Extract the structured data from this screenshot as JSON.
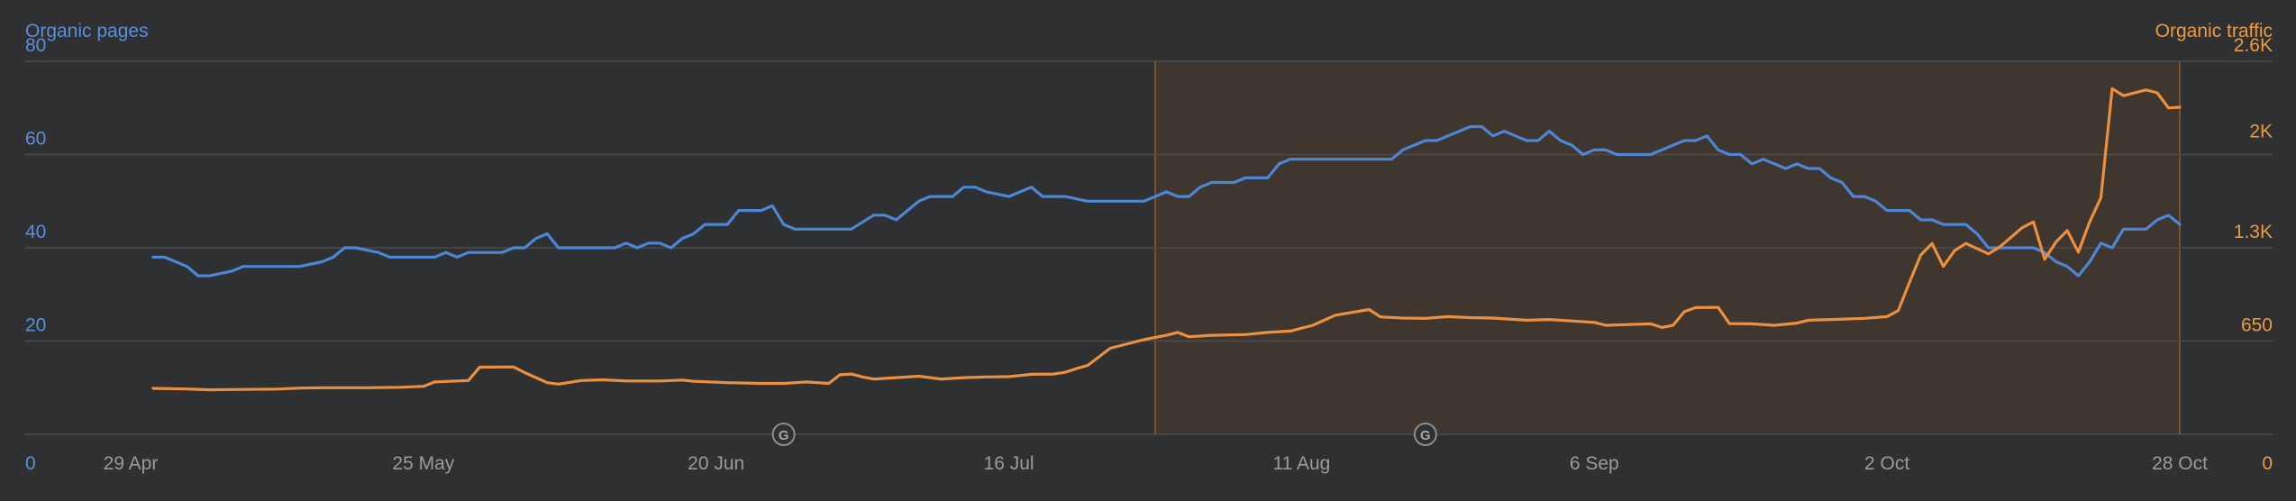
{
  "chart_data": {
    "type": "line",
    "title": "",
    "legend": "none",
    "grid": true,
    "y_left": {
      "label": "Organic pages",
      "range": [
        0,
        80
      ],
      "ticks": [
        0,
        20,
        40,
        60,
        80
      ],
      "tick_labels": [
        "0",
        "20",
        "40",
        "60",
        "80"
      ]
    },
    "y_right": {
      "label": "Organic traffic",
      "range": [
        0,
        2600
      ],
      "ticks": [
        0,
        650,
        1300,
        2000,
        2600
      ],
      "tick_labels": [
        "0",
        "650",
        "1.3K",
        "2K",
        "2.6K"
      ]
    },
    "x_axis": {
      "start": "2024-04-29",
      "end": "2024-10-28",
      "ticks": [
        "2024-04-29",
        "2024-05-25",
        "2024-06-20",
        "2024-07-16",
        "2024-08-11",
        "2024-09-06",
        "2024-10-02",
        "2024-10-28"
      ],
      "tick_labels": [
        "29 Apr",
        "25 May",
        "20 Jun",
        "16 Jul",
        "11 Aug",
        "6 Sep",
        "2 Oct",
        "28 Oct"
      ]
    },
    "highlight_range": [
      "2024-07-29",
      "2024-10-28"
    ],
    "annotations": [
      {
        "date": "2024-06-26",
        "icon": "google-update-icon",
        "label": "G"
      },
      {
        "date": "2024-08-22",
        "icon": "google-update-icon",
        "label": "G"
      }
    ],
    "colors": {
      "pages": "#4c86d4",
      "traffic": "#ea9040",
      "highlight_fill": "#3f3630",
      "highlight_line": "#8f5c2e",
      "grid": "#4a4b4d",
      "background": "#2f3032"
    },
    "series": [
      {
        "name": "Organic pages",
        "axis": "left",
        "points": [
          [
            "2024-05-01",
            38
          ],
          [
            "2024-05-02",
            38
          ],
          [
            "2024-05-04",
            36
          ],
          [
            "2024-05-05",
            34
          ],
          [
            "2024-05-06",
            34
          ],
          [
            "2024-05-08",
            35
          ],
          [
            "2024-05-09",
            36
          ],
          [
            "2024-05-11",
            36
          ],
          [
            "2024-05-14",
            36
          ],
          [
            "2024-05-16",
            37
          ],
          [
            "2024-05-17",
            38
          ],
          [
            "2024-05-18",
            40
          ],
          [
            "2024-05-19",
            40
          ],
          [
            "2024-05-21",
            39
          ],
          [
            "2024-05-22",
            38
          ],
          [
            "2024-05-23",
            38
          ],
          [
            "2024-05-26",
            38
          ],
          [
            "2024-05-27",
            39
          ],
          [
            "2024-05-28",
            38
          ],
          [
            "2024-05-29",
            39
          ],
          [
            "2024-06-01",
            39
          ],
          [
            "2024-06-02",
            40
          ],
          [
            "2024-06-03",
            40
          ],
          [
            "2024-06-04",
            42
          ],
          [
            "2024-06-05",
            43
          ],
          [
            "2024-06-06",
            40
          ],
          [
            "2024-06-08",
            40
          ],
          [
            "2024-06-10",
            40
          ],
          [
            "2024-06-11",
            40
          ],
          [
            "2024-06-12",
            41
          ],
          [
            "2024-06-13",
            40
          ],
          [
            "2024-06-14",
            41
          ],
          [
            "2024-06-15",
            41
          ],
          [
            "2024-06-16",
            40
          ],
          [
            "2024-06-17",
            42
          ],
          [
            "2024-06-18",
            43
          ],
          [
            "2024-06-19",
            45
          ],
          [
            "2024-06-21",
            45
          ],
          [
            "2024-06-22",
            48
          ],
          [
            "2024-06-24",
            48
          ],
          [
            "2024-06-25",
            49
          ],
          [
            "2024-06-26",
            45
          ],
          [
            "2024-06-27",
            44
          ],
          [
            "2024-06-30",
            44
          ],
          [
            "2024-07-02",
            44
          ],
          [
            "2024-07-04",
            47
          ],
          [
            "2024-07-05",
            47
          ],
          [
            "2024-07-06",
            46
          ],
          [
            "2024-07-07",
            48
          ],
          [
            "2024-07-08",
            50
          ],
          [
            "2024-07-09",
            51
          ],
          [
            "2024-07-10",
            51
          ],
          [
            "2024-07-11",
            51
          ],
          [
            "2024-07-12",
            53
          ],
          [
            "2024-07-13",
            53
          ],
          [
            "2024-07-14",
            52
          ],
          [
            "2024-07-16",
            51
          ],
          [
            "2024-07-17",
            52
          ],
          [
            "2024-07-18",
            53
          ],
          [
            "2024-07-19",
            51
          ],
          [
            "2024-07-21",
            51
          ],
          [
            "2024-07-23",
            50
          ],
          [
            "2024-07-25",
            50
          ],
          [
            "2024-07-28",
            50
          ],
          [
            "2024-07-29",
            51
          ],
          [
            "2024-07-30",
            52
          ],
          [
            "2024-07-31",
            51
          ],
          [
            "2024-08-01",
            51
          ],
          [
            "2024-08-02",
            53
          ],
          [
            "2024-08-03",
            54
          ],
          [
            "2024-08-05",
            54
          ],
          [
            "2024-08-06",
            55
          ],
          [
            "2024-08-08",
            55
          ],
          [
            "2024-08-09",
            58
          ],
          [
            "2024-08-10",
            59
          ],
          [
            "2024-08-11",
            59
          ],
          [
            "2024-08-17",
            59
          ],
          [
            "2024-08-19",
            59
          ],
          [
            "2024-08-20",
            61
          ],
          [
            "2024-08-21",
            62
          ],
          [
            "2024-08-22",
            63
          ],
          [
            "2024-08-23",
            63
          ],
          [
            "2024-08-24",
            64
          ],
          [
            "2024-08-25",
            65
          ],
          [
            "2024-08-26",
            66
          ],
          [
            "2024-08-27",
            66
          ],
          [
            "2024-08-28",
            64
          ],
          [
            "2024-08-29",
            65
          ],
          [
            "2024-08-30",
            64
          ],
          [
            "2024-08-31",
            63
          ],
          [
            "2024-09-01",
            63
          ],
          [
            "2024-09-02",
            65
          ],
          [
            "2024-09-03",
            63
          ],
          [
            "2024-09-04",
            62
          ],
          [
            "2024-09-05",
            60
          ],
          [
            "2024-09-06",
            61
          ],
          [
            "2024-09-07",
            61
          ],
          [
            "2024-09-08",
            60
          ],
          [
            "2024-09-11",
            60
          ],
          [
            "2024-09-12",
            61
          ],
          [
            "2024-09-13",
            62
          ],
          [
            "2024-09-14",
            63
          ],
          [
            "2024-09-15",
            63
          ],
          [
            "2024-09-16",
            64
          ],
          [
            "2024-09-17",
            61
          ],
          [
            "2024-09-18",
            60
          ],
          [
            "2024-09-19",
            60
          ],
          [
            "2024-09-20",
            58
          ],
          [
            "2024-09-21",
            59
          ],
          [
            "2024-09-22",
            58
          ],
          [
            "2024-09-23",
            57
          ],
          [
            "2024-09-24",
            58
          ],
          [
            "2024-09-25",
            57
          ],
          [
            "2024-09-26",
            57
          ],
          [
            "2024-09-27",
            55
          ],
          [
            "2024-09-28",
            54
          ],
          [
            "2024-09-29",
            51
          ],
          [
            "2024-09-30",
            51
          ],
          [
            "2024-10-01",
            50
          ],
          [
            "2024-10-02",
            48
          ],
          [
            "2024-10-04",
            48
          ],
          [
            "2024-10-05",
            46
          ],
          [
            "2024-10-06",
            46
          ],
          [
            "2024-10-07",
            45
          ],
          [
            "2024-10-09",
            45
          ],
          [
            "2024-10-10",
            43
          ],
          [
            "2024-10-11",
            40
          ],
          [
            "2024-10-15",
            40
          ],
          [
            "2024-10-16",
            39
          ],
          [
            "2024-10-17",
            37
          ],
          [
            "2024-10-18",
            36
          ],
          [
            "2024-10-19",
            34
          ],
          [
            "2024-10-20",
            37
          ],
          [
            "2024-10-21",
            41
          ],
          [
            "2024-10-22",
            40
          ],
          [
            "2024-10-23",
            44
          ],
          [
            "2024-10-25",
            44
          ],
          [
            "2024-10-26",
            46
          ],
          [
            "2024-10-27",
            47
          ],
          [
            "2024-10-28",
            45
          ]
        ]
      },
      {
        "name": "Organic traffic",
        "axis": "right",
        "points": [
          [
            "2024-05-01",
            320
          ],
          [
            "2024-05-04",
            316
          ],
          [
            "2024-05-06",
            310
          ],
          [
            "2024-05-08",
            312
          ],
          [
            "2024-05-12",
            315
          ],
          [
            "2024-05-14",
            322
          ],
          [
            "2024-05-16",
            325
          ],
          [
            "2024-05-20",
            325
          ],
          [
            "2024-05-23",
            328
          ],
          [
            "2024-05-25",
            335
          ],
          [
            "2024-05-26",
            365
          ],
          [
            "2024-05-28",
            372
          ],
          [
            "2024-05-29",
            375
          ],
          [
            "2024-05-30",
            468
          ],
          [
            "2024-06-02",
            470
          ],
          [
            "2024-06-03",
            430
          ],
          [
            "2024-06-05",
            360
          ],
          [
            "2024-06-06",
            350
          ],
          [
            "2024-06-08",
            375
          ],
          [
            "2024-06-10",
            380
          ],
          [
            "2024-06-12",
            372
          ],
          [
            "2024-06-15",
            372
          ],
          [
            "2024-06-17",
            378
          ],
          [
            "2024-06-18",
            370
          ],
          [
            "2024-06-21",
            360
          ],
          [
            "2024-06-24",
            355
          ],
          [
            "2024-06-26",
            355
          ],
          [
            "2024-06-28",
            365
          ],
          [
            "2024-06-30",
            355
          ],
          [
            "2024-07-01",
            415
          ],
          [
            "2024-07-02",
            420
          ],
          [
            "2024-07-03",
            400
          ],
          [
            "2024-07-04",
            385
          ],
          [
            "2024-07-06",
            395
          ],
          [
            "2024-07-08",
            405
          ],
          [
            "2024-07-10",
            385
          ],
          [
            "2024-07-12",
            395
          ],
          [
            "2024-07-14",
            400
          ],
          [
            "2024-07-16",
            402
          ],
          [
            "2024-07-18",
            418
          ],
          [
            "2024-07-20",
            420
          ],
          [
            "2024-07-21",
            432
          ],
          [
            "2024-07-22",
            458
          ],
          [
            "2024-07-23",
            480
          ],
          [
            "2024-07-25",
            600
          ],
          [
            "2024-07-28",
            660
          ],
          [
            "2024-07-30",
            690
          ],
          [
            "2024-07-31",
            710
          ],
          [
            "2024-08-01",
            680
          ],
          [
            "2024-08-03",
            690
          ],
          [
            "2024-08-06",
            695
          ],
          [
            "2024-08-08",
            710
          ],
          [
            "2024-08-10",
            720
          ],
          [
            "2024-08-12",
            760
          ],
          [
            "2024-08-14",
            830
          ],
          [
            "2024-08-17",
            870
          ],
          [
            "2024-08-18",
            818
          ],
          [
            "2024-08-20",
            810
          ],
          [
            "2024-08-22",
            808
          ],
          [
            "2024-08-24",
            820
          ],
          [
            "2024-08-26",
            813
          ],
          [
            "2024-08-28",
            810
          ],
          [
            "2024-08-31",
            795
          ],
          [
            "2024-09-02",
            800
          ],
          [
            "2024-09-04",
            790
          ],
          [
            "2024-09-06",
            780
          ],
          [
            "2024-09-07",
            760
          ],
          [
            "2024-09-09",
            765
          ],
          [
            "2024-09-11",
            770
          ],
          [
            "2024-09-12",
            745
          ],
          [
            "2024-09-13",
            760
          ],
          [
            "2024-09-14",
            855
          ],
          [
            "2024-09-15",
            883
          ],
          [
            "2024-09-17",
            885
          ],
          [
            "2024-09-18",
            772
          ],
          [
            "2024-09-20",
            770
          ],
          [
            "2024-09-22",
            760
          ],
          [
            "2024-09-24",
            775
          ],
          [
            "2024-09-25",
            795
          ],
          [
            "2024-09-27",
            800
          ],
          [
            "2024-09-30",
            808
          ],
          [
            "2024-10-02",
            820
          ],
          [
            "2024-10-03",
            862
          ],
          [
            "2024-10-04",
            1060
          ],
          [
            "2024-10-05",
            1250
          ],
          [
            "2024-10-06",
            1330
          ],
          [
            "2024-10-07",
            1170
          ],
          [
            "2024-10-08",
            1280
          ],
          [
            "2024-10-09",
            1330
          ],
          [
            "2024-10-11",
            1258
          ],
          [
            "2024-10-12",
            1305
          ],
          [
            "2024-10-14",
            1440
          ],
          [
            "2024-10-15",
            1480
          ],
          [
            "2024-10-16",
            1220
          ],
          [
            "2024-10-17",
            1340
          ],
          [
            "2024-10-18",
            1420
          ],
          [
            "2024-10-19",
            1270
          ],
          [
            "2024-10-20",
            1480
          ],
          [
            "2024-10-21",
            1650
          ],
          [
            "2024-10-22",
            2410
          ],
          [
            "2024-10-23",
            2360
          ],
          [
            "2024-10-25",
            2400
          ],
          [
            "2024-10-26",
            2380
          ],
          [
            "2024-10-27",
            2275
          ],
          [
            "2024-10-28",
            2280
          ]
        ]
      }
    ]
  }
}
